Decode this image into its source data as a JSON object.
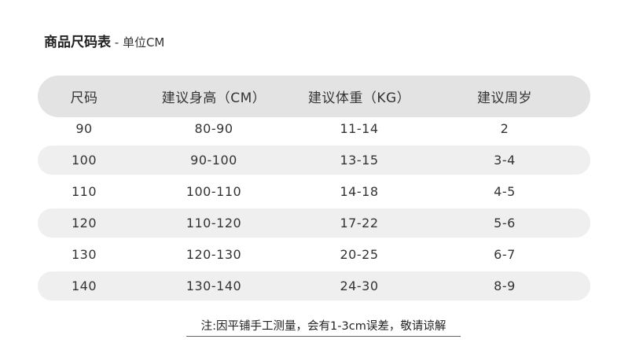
{
  "title": {
    "main": "商品尺码表",
    "sub": " - 单位CM"
  },
  "headers": [
    "尺码",
    "建议身高（CM）",
    "建议体重（KG）",
    "建议周岁"
  ],
  "rows": [
    [
      "90",
      "80-90",
      "11-14",
      "2"
    ],
    [
      "100",
      "90-100",
      "13-15",
      "3-4"
    ],
    [
      "110",
      "100-110",
      "14-18",
      "4-5"
    ],
    [
      "120",
      "110-120",
      "17-22",
      "5-6"
    ],
    [
      "130",
      "120-130",
      "20-25",
      "6-7"
    ],
    [
      "140",
      "130-140",
      "24-30",
      "8-9"
    ]
  ],
  "note": "注:因平铺手工测量，会有1-3cm误差，敬请谅解"
}
